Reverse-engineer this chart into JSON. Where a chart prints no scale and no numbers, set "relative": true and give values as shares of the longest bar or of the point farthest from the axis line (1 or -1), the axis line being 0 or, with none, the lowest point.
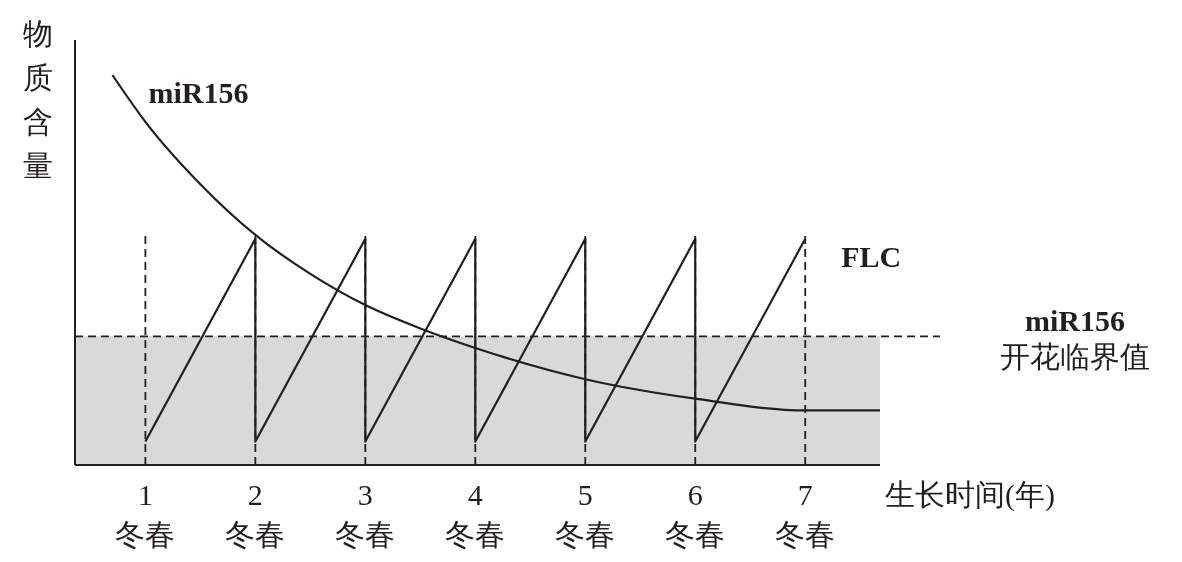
{
  "chart_data": {
    "type": "line",
    "relative": true,
    "ylabel": "物质含量",
    "xlabel": "生长时间(年)",
    "xlim": [
      0.36,
      7.68
    ],
    "xticks": [
      {
        "value": 1,
        "label": "1\n冬春"
      },
      {
        "value": 2,
        "label": "2\n冬春"
      },
      {
        "value": 3,
        "label": "3\n冬春"
      },
      {
        "value": 4,
        "label": "4\n冬春"
      },
      {
        "value": 5,
        "label": "5\n冬春"
      },
      {
        "value": 6,
        "label": "6\n冬春"
      },
      {
        "value": 7,
        "label": "7\n冬春"
      }
    ],
    "ref_lines": [
      {
        "axis": "y",
        "value": 0.33,
        "label": "miR156\n开花临界值",
        "line_style": "dashed",
        "color": "#231f20"
      },
      {
        "axis": "x",
        "value": 1,
        "line_style": "dashed",
        "color": "#231f20"
      },
      {
        "axis": "x",
        "value": 2,
        "line_style": "dashed",
        "color": "#231f20"
      },
      {
        "axis": "x",
        "value": 3,
        "line_style": "dashed",
        "color": "#231f20"
      },
      {
        "axis": "x",
        "value": 4,
        "line_style": "dashed",
        "color": "#231f20"
      },
      {
        "axis": "x",
        "value": 5,
        "line_style": "dashed",
        "color": "#231f20"
      },
      {
        "axis": "x",
        "value": 6,
        "line_style": "dashed",
        "color": "#231f20"
      },
      {
        "axis": "x",
        "value": 7,
        "line_style": "dashed",
        "color": "#231f20"
      }
    ],
    "series": [
      {
        "name": "miR156",
        "color": "#231f20",
        "x": [
          0.7,
          1.0,
          1.5,
          2.0,
          2.5,
          3.0,
          3.5,
          4.0,
          5.0,
          6.0,
          7.0,
          7.68
        ],
        "values": [
          1.0,
          0.88,
          0.72,
          0.59,
          0.49,
          0.41,
          0.35,
          0.3,
          0.22,
          0.17,
          0.14,
          0.14
        ]
      },
      {
        "name": "FLC",
        "color": "#231f20",
        "x": [
          1,
          2,
          2,
          3,
          3,
          4,
          4,
          5,
          5,
          6,
          6,
          7
        ],
        "values": [
          0.06,
          0.58,
          0.06,
          0.58,
          0.06,
          0.58,
          0.06,
          0.58,
          0.06,
          0.58,
          0.06,
          0.58
        ]
      }
    ],
    "bands": [
      {
        "axis": "y",
        "from": 0,
        "to": 0.33,
        "color": "#d9d9d9"
      }
    ]
  }
}
